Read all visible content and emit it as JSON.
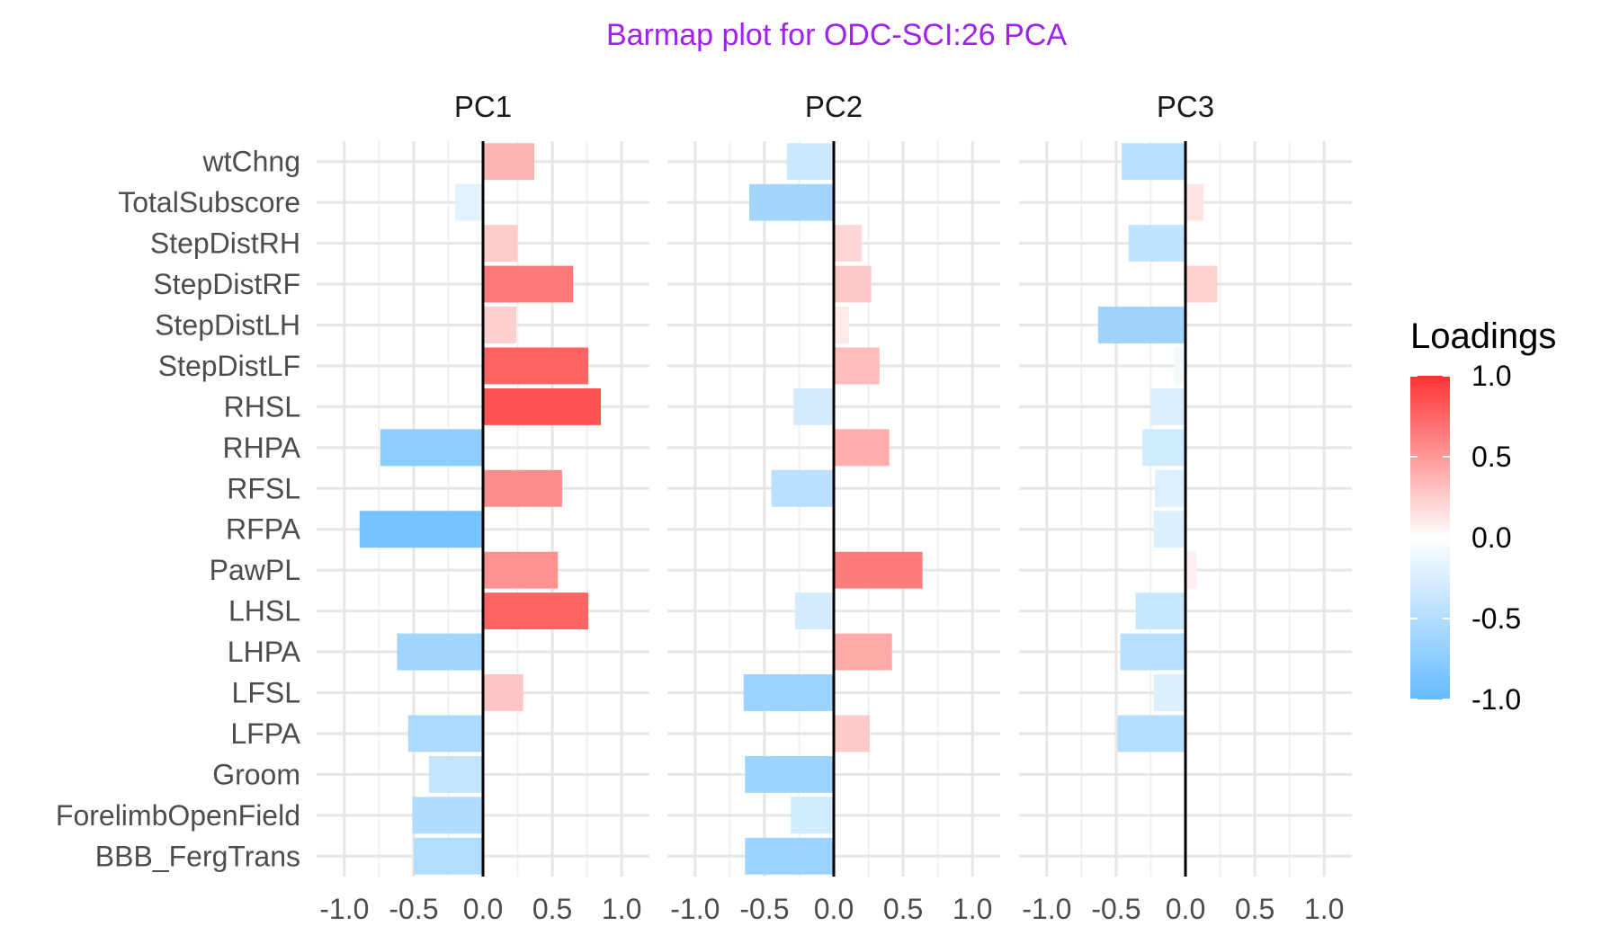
{
  "chart_data": {
    "type": "bar",
    "title": "Barmap plot for ODC-SCI:26 PCA",
    "title_color": "#A020F0",
    "orientation": "horizontal",
    "facets": [
      "PC1",
      "PC2",
      "PC3"
    ],
    "categories": [
      "wtChng",
      "TotalSubscore",
      "StepDistRH",
      "StepDistRF",
      "StepDistLH",
      "StepDistLF",
      "RHSL",
      "RHPA",
      "RFSL",
      "RFPA",
      "PawPL",
      "LHSL",
      "LHPA",
      "LFSL",
      "LFPA",
      "Groom",
      "ForelimbOpenField",
      "BBB_FergTrans"
    ],
    "series": [
      {
        "name": "PC1",
        "values": [
          0.37,
          -0.2,
          0.25,
          0.65,
          0.24,
          0.76,
          0.85,
          -0.74,
          0.57,
          -0.89,
          0.54,
          0.76,
          -0.62,
          0.29,
          -0.54,
          -0.39,
          -0.51,
          -0.5
        ]
      },
      {
        "name": "PC2",
        "values": [
          -0.34,
          -0.61,
          0.2,
          0.27,
          0.11,
          0.33,
          -0.29,
          0.4,
          -0.45,
          0.0,
          0.64,
          -0.28,
          0.42,
          -0.65,
          0.26,
          -0.64,
          -0.31,
          -0.64
        ]
      },
      {
        "name": "PC3",
        "values": [
          -0.46,
          0.13,
          -0.41,
          0.23,
          -0.63,
          -0.08,
          -0.25,
          -0.31,
          -0.22,
          -0.23,
          0.08,
          -0.36,
          -0.47,
          -0.23,
          -0.49,
          0.0,
          0.0,
          0.0
        ]
      }
    ],
    "xlim": [
      -1.2,
      1.2
    ],
    "xticks": [
      "-1.0",
      "-0.5",
      "0.0",
      "0.5",
      "1.0"
    ],
    "xtick_values": [
      -1.0,
      -0.5,
      0.0,
      0.5,
      1.0
    ],
    "legend": {
      "title": "Loadings",
      "position": "right",
      "ticks": [
        "1.0",
        "0.5",
        "0.0",
        "-0.5",
        "-1.0"
      ],
      "tick_values": [
        1.0,
        0.5,
        0.0,
        -0.5,
        -1.0
      ],
      "high_color": "#FF3333",
      "mid_color": "#FFFFFF",
      "low_color": "#66BBFF"
    },
    "grid": true
  }
}
